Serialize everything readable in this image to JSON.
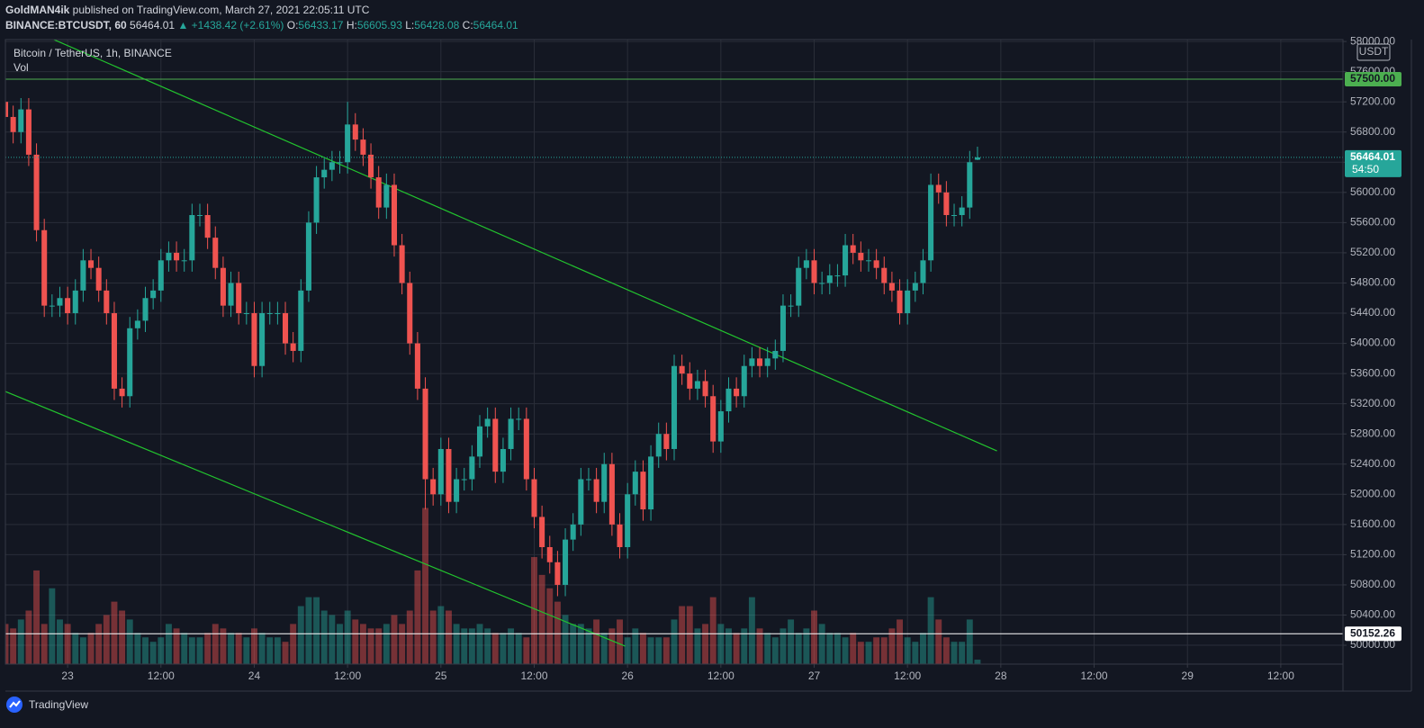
{
  "header": {
    "author": "GoldMAN4ik",
    "published": " published on TradingView.com, March 27, 2021 22:05:11 UTC",
    "symbol": "BINANCE:BTCUSDT, 60",
    "change_label": "▲ +1438.42 (+2.61%)",
    "ohlc_labels": [
      "O:",
      "H:",
      "L:",
      "C:"
    ]
  },
  "legend": {
    "symbol": "Bitcoin / TetherUS, 1h, BINANCE",
    "volume": "Vol"
  },
  "footer": {
    "brand": "TradingView"
  },
  "chart_data": {
    "type": "candlestick",
    "up_color": "#26a69a",
    "down_color": "#ef5350",
    "grid": true,
    "currency": "USDT",
    "countdown": "54:50",
    "xlim": [
      0,
      172
    ],
    "ylim": [
      49750,
      58025
    ],
    "xticks": [
      {
        "value": 8,
        "label": "23"
      },
      {
        "value": 20,
        "label": "12:00"
      },
      {
        "value": 32,
        "label": "24"
      },
      {
        "value": 44,
        "label": "12:00"
      },
      {
        "value": 56,
        "label": "25"
      },
      {
        "value": 68,
        "label": "12:00"
      },
      {
        "value": 80,
        "label": "26"
      },
      {
        "value": 92,
        "label": "12:00"
      },
      {
        "value": 104,
        "label": "27"
      },
      {
        "value": 116,
        "label": "12:00"
      },
      {
        "value": 128,
        "label": "28"
      },
      {
        "value": 140,
        "label": "12:00"
      },
      {
        "value": 152,
        "label": "29"
      },
      {
        "value": 164,
        "label": "12:00"
      }
    ],
    "yticks": [
      {
        "value": 50000,
        "label": "50000.00"
      },
      {
        "value": 50400,
        "label": "50400.00"
      },
      {
        "value": 50800,
        "label": "50800.00"
      },
      {
        "value": 51200,
        "label": "51200.00"
      },
      {
        "value": 51600,
        "label": "51600.00"
      },
      {
        "value": 52000,
        "label": "52000.00"
      },
      {
        "value": 52400,
        "label": "52400.00"
      },
      {
        "value": 52800,
        "label": "52800.00"
      },
      {
        "value": 53200,
        "label": "53200.00"
      },
      {
        "value": 53600,
        "label": "53600.00"
      },
      {
        "value": 54000,
        "label": "54000.00"
      },
      {
        "value": 54400,
        "label": "54400.00"
      },
      {
        "value": 54800,
        "label": "54800.00"
      },
      {
        "value": 55200,
        "label": "55200.00"
      },
      {
        "value": 55600,
        "label": "55600.00"
      },
      {
        "value": 56000,
        "label": "56000.00"
      },
      {
        "value": 56400,
        "label": "56400.00"
      },
      {
        "value": 56800,
        "label": "56800.00"
      },
      {
        "value": 57200,
        "label": "57200.00"
      },
      {
        "value": 57600,
        "label": "57600.00"
      },
      {
        "value": 58000,
        "label": "58000.00"
      }
    ],
    "open": [
      57200,
      57000,
      56800,
      57100,
      56500,
      55500,
      54500,
      54500,
      54600,
      54400,
      54700,
      55100,
      55000,
      54700,
      54400,
      53400,
      53300,
      54200,
      54300,
      54600,
      54700,
      55100,
      55200,
      55100,
      55100,
      55700,
      55700,
      55400,
      55000,
      54500,
      54800,
      54400,
      54400,
      53700,
      54400,
      54400,
      54400,
      54000,
      53900,
      54700,
      55600,
      56200,
      56300,
      56400,
      56400,
      56900,
      56700,
      56500,
      56200,
      55800,
      56100,
      55300,
      54800,
      54000,
      53400,
      52200,
      52000,
      52600,
      51900,
      52200,
      52200,
      52500,
      52900,
      53000,
      52300,
      52600,
      53000,
      53000,
      52200,
      51700,
      51300,
      51100,
      50800,
      51400,
      51600,
      52200,
      52200,
      51900,
      52400,
      51600,
      51300,
      52000,
      52300,
      51800,
      52500,
      52800,
      52600,
      53700,
      53600,
      53400,
      53500,
      53300,
      52700,
      53100,
      53400,
      53300,
      53700,
      53800,
      53700,
      53800,
      53900,
      54500,
      54500,
      55000,
      55100,
      54800,
      54800,
      54900,
      54900,
      55300,
      55200,
      55100,
      55100,
      55000,
      54800,
      54700,
      54400,
      54700,
      54800,
      55100,
      56100,
      56000,
      55700,
      55700,
      55800,
      56433.17
    ],
    "high": [
      57350,
      57150,
      57250,
      57250,
      56650,
      55650,
      54650,
      54750,
      54750,
      54850,
      55250,
      55250,
      55150,
      54850,
      54550,
      53550,
      54350,
      54450,
      54750,
      54850,
      55250,
      55350,
      55350,
      55250,
      55850,
      55850,
      55850,
      55550,
      55150,
      54950,
      54950,
      54550,
      54550,
      54550,
      54550,
      54550,
      54550,
      54150,
      54850,
      55750,
      56350,
      56450,
      56550,
      56550,
      57200,
      57050,
      56850,
      56650,
      56350,
      56250,
      56250,
      55450,
      54950,
      54150,
      53550,
      52350,
      52750,
      52750,
      52350,
      52350,
      52650,
      53050,
      53150,
      53150,
      52750,
      53150,
      53150,
      53150,
      52350,
      51850,
      51450,
      51250,
      51550,
      51750,
      52350,
      52350,
      52350,
      52550,
      52550,
      51750,
      52150,
      52450,
      52450,
      52650,
      52950,
      52950,
      53850,
      53850,
      53750,
      53650,
      53650,
      53450,
      53250,
      53550,
      53550,
      53850,
      53950,
      53950,
      53950,
      54050,
      54650,
      54650,
      55150,
      55250,
      55250,
      54950,
      55050,
      55050,
      55450,
      55450,
      55350,
      55250,
      55250,
      55150,
      54950,
      54850,
      54850,
      54950,
      55250,
      56250,
      56250,
      56150,
      55850,
      55950,
      56550,
      56605.93
    ],
    "low": [
      56200,
      56650,
      56650,
      56350,
      55350,
      54350,
      54350,
      54350,
      54250,
      54250,
      54550,
      54850,
      54550,
      54250,
      53250,
      53150,
      53150,
      54050,
      54150,
      54450,
      54550,
      54950,
      54950,
      54950,
      54950,
      55550,
      55250,
      54850,
      54350,
      54350,
      54250,
      54250,
      53550,
      53550,
      54250,
      54250,
      53850,
      53750,
      53750,
      54550,
      55450,
      56050,
      56150,
      56250,
      56250,
      56550,
      56350,
      56050,
      55650,
      55650,
      55150,
      54650,
      53850,
      53250,
      51800,
      51850,
      51850,
      51750,
      51750,
      52050,
      52050,
      52350,
      52750,
      52150,
      52150,
      52450,
      52850,
      52050,
      51550,
      51150,
      50950,
      50650,
      50650,
      51250,
      51450,
      52050,
      51750,
      51750,
      51450,
      51150,
      51150,
      51850,
      51650,
      51650,
      52350,
      52450,
      52450,
      53450,
      53250,
      53250,
      53150,
      52550,
      52550,
      52950,
      53150,
      53150,
      53550,
      53550,
      53550,
      53650,
      53750,
      54350,
      54350,
      54850,
      54650,
      54650,
      54650,
      54750,
      54750,
      55050,
      54950,
      54950,
      54850,
      54650,
      54550,
      54250,
      54250,
      54550,
      54650,
      54950,
      55850,
      55550,
      55550,
      55550,
      55650,
      56428.08
    ],
    "close": [
      57000,
      56800,
      57100,
      56500,
      55500,
      54500,
      54500,
      54600,
      54400,
      54700,
      55100,
      55000,
      54700,
      54400,
      53400,
      53300,
      54200,
      54300,
      54600,
      54700,
      55100,
      55200,
      55100,
      55100,
      55700,
      55700,
      55400,
      55000,
      54500,
      54800,
      54400,
      54400,
      53700,
      54400,
      54400,
      54400,
      54000,
      53900,
      54700,
      55600,
      56200,
      56300,
      56400,
      56400,
      56900,
      56700,
      56500,
      56200,
      55800,
      56100,
      55300,
      54800,
      54000,
      53400,
      52200,
      52000,
      52600,
      51900,
      52200,
      52200,
      52500,
      52900,
      53000,
      52300,
      52600,
      53000,
      53000,
      52200,
      51700,
      51300,
      51100,
      50800,
      51400,
      51600,
      52200,
      52200,
      51900,
      52400,
      51600,
      51300,
      52000,
      52300,
      51800,
      52500,
      52800,
      52600,
      53700,
      53600,
      53400,
      53500,
      53300,
      52700,
      53100,
      53400,
      53300,
      53700,
      53800,
      53700,
      53800,
      53900,
      54500,
      54500,
      55000,
      55100,
      54800,
      54800,
      54900,
      54900,
      55300,
      55200,
      55100,
      55100,
      55000,
      54800,
      54700,
      54400,
      54700,
      54800,
      55100,
      56100,
      56000,
      55700,
      55700,
      55800,
      56400,
      56464.01
    ],
    "volume": [
      45,
      40,
      50,
      60,
      105,
      45,
      85,
      50,
      45,
      35,
      30,
      35,
      45,
      55,
      70,
      60,
      50,
      35,
      30,
      25,
      30,
      45,
      40,
      35,
      30,
      30,
      35,
      45,
      40,
      35,
      35,
      30,
      40,
      35,
      30,
      30,
      25,
      45,
      65,
      75,
      75,
      60,
      55,
      45,
      60,
      50,
      45,
      40,
      40,
      45,
      55,
      45,
      60,
      105,
      175,
      60,
      65,
      60,
      45,
      40,
      40,
      45,
      40,
      35,
      35,
      40,
      35,
      30,
      120,
      100,
      85,
      70,
      55,
      45,
      45,
      40,
      50,
      35,
      40,
      50,
      30,
      40,
      35,
      30,
      30,
      30,
      50,
      65,
      65,
      40,
      45,
      75,
      45,
      40,
      35,
      40,
      75,
      40,
      35,
      30,
      40,
      50,
      35,
      40,
      60,
      45,
      35,
      35,
      30,
      35,
      25,
      25,
      30,
      30,
      40,
      50,
      30,
      25,
      35,
      75,
      50,
      30,
      25,
      25,
      50,
      5
    ],
    "horizontal_lines": [
      {
        "value": 57500,
        "label": "57500.00",
        "color": "#4caf50"
      },
      {
        "value": 50152.26,
        "label": "50152.26",
        "color": "#ffffff"
      }
    ],
    "trend_lines": [
      {
        "x": [
          6.25,
          127.5
        ],
        "y": [
          58024,
          52575
        ],
        "color": "#22c32e"
      },
      {
        "x": [
          0,
          79.7
        ],
        "y": [
          53362,
          49988
        ],
        "color": "#22c32e"
      }
    ]
  }
}
